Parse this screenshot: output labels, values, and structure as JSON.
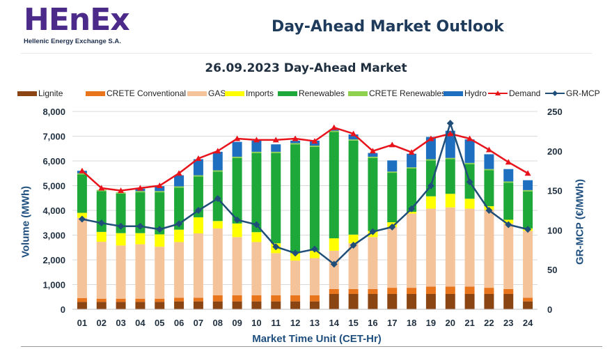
{
  "header": {
    "logo_text": "HEnEx",
    "logo_subtitle": "Hellenic Energy Exchange S.A.",
    "title": "Day-Ahead Market Outlook",
    "subtitle": "26.09.2023  Day-Ahead Market"
  },
  "colors": {
    "Lignite": "#8b4513",
    "CRETE Conventional": "#e8741c",
    "GAS": "#f5c39a",
    "Imports": "#ffff00",
    "Renewables": "#1fa83a",
    "CRETE Renewables": "#8ed14f",
    "Hydro": "#1f6fc0",
    "Demand": "#e8141c",
    "GR-MCP": "#1f4e79"
  },
  "chart_data": {
    "type": "bar",
    "stacked": true,
    "title": "26.09.2023  Day-Ahead Market",
    "xlabel": "Market Time Unit (CET-Hr)",
    "ylabel": "Volume (MWh)",
    "y2label": "GR-MCP (€/MWh)",
    "ylim": [
      0,
      8000
    ],
    "y2lim": [
      0,
      250
    ],
    "yticks": [
      "0",
      "1,000",
      "2,000",
      "3,000",
      "4,000",
      "5,000",
      "6,000",
      "7,000",
      "8,000"
    ],
    "y2ticks": [
      "0",
      "50",
      "100",
      "150",
      "200",
      "250"
    ],
    "categories": [
      "01",
      "02",
      "03",
      "04",
      "05",
      "06",
      "07",
      "08",
      "09",
      "10",
      "11",
      "12",
      "13",
      "14",
      "15",
      "16",
      "17",
      "18",
      "19",
      "20",
      "21",
      "22",
      "23",
      "24"
    ],
    "series": [
      {
        "name": "Lignite",
        "kind": "bar",
        "values": [
          300,
          300,
          300,
          300,
          300,
          320,
          320,
          320,
          320,
          320,
          320,
          320,
          320,
          620,
          620,
          620,
          620,
          620,
          620,
          620,
          620,
          620,
          620,
          320
        ]
      },
      {
        "name": "CRETE Conventional",
        "kind": "bar",
        "values": [
          150,
          130,
          130,
          130,
          130,
          150,
          150,
          250,
          250,
          250,
          250,
          250,
          250,
          200,
          200,
          200,
          250,
          250,
          300,
          300,
          300,
          250,
          200,
          150
        ]
      },
      {
        "name": "GAS",
        "kind": "bar",
        "values": [
          3250,
          2300,
          2150,
          2200,
          2100,
          2250,
          2600,
          2700,
          2350,
          2150,
          1700,
          1400,
          1500,
          1550,
          1850,
          2100,
          2450,
          3000,
          3150,
          3200,
          3150,
          3150,
          2650,
          2700
        ]
      },
      {
        "name": "Imports",
        "kind": "bar",
        "values": [
          200,
          400,
          500,
          450,
          500,
          500,
          650,
          300,
          550,
          400,
          400,
          300,
          300,
          500,
          350,
          250,
          200,
          70,
          500,
          550,
          400,
          150,
          150,
          100
        ]
      },
      {
        "name": "Renewables",
        "kind": "bar",
        "values": [
          1550,
          1650,
          1600,
          1650,
          1700,
          1700,
          1650,
          2000,
          2650,
          3200,
          3650,
          4400,
          4200,
          4300,
          3800,
          2950,
          2000,
          1750,
          1450,
          1400,
          1400,
          1450,
          1500,
          1500
        ]
      },
      {
        "name": "CRETE Renewables",
        "kind": "bar",
        "values": [
          50,
          50,
          50,
          50,
          50,
          50,
          50,
          50,
          50,
          50,
          50,
          50,
          50,
          50,
          50,
          50,
          50,
          50,
          50,
          50,
          50,
          50,
          50,
          50
        ]
      },
      {
        "name": "Hydro",
        "kind": "bar",
        "values": [
          100,
          0,
          0,
          100,
          200,
          450,
          650,
          750,
          600,
          450,
          300,
          100,
          200,
          50,
          200,
          150,
          450,
          550,
          900,
          1100,
          950,
          600,
          500,
          400
        ]
      },
      {
        "name": "Demand",
        "kind": "line",
        "axis": "left",
        "values": [
          5600,
          4900,
          4800,
          4900,
          5000,
          5500,
          6100,
          6400,
          6900,
          6850,
          6850,
          6900,
          6800,
          7350,
          7100,
          6400,
          6650,
          6350,
          6900,
          7100,
          6900,
          6450,
          5950,
          5500
        ]
      },
      {
        "name": "GR-MCP",
        "kind": "line",
        "axis": "right",
        "values": [
          114,
          109,
          105,
          105,
          101,
          108,
          125,
          140,
          113,
          107,
          79,
          71,
          76,
          57,
          81,
          98,
          104,
          127,
          156,
          235,
          161,
          125,
          107,
          101
        ]
      }
    ]
  }
}
